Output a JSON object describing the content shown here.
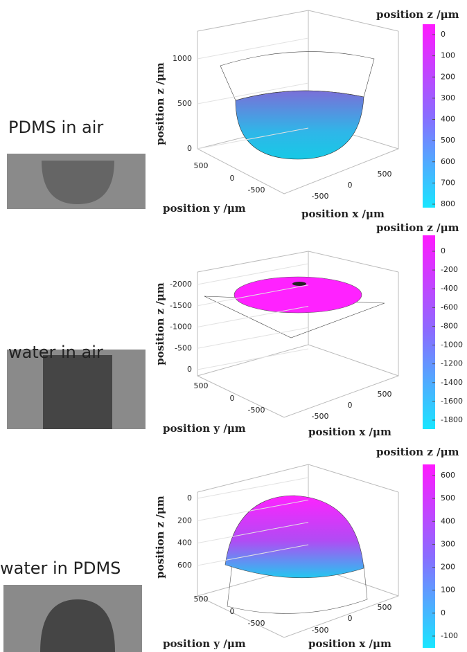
{
  "panels": [
    {
      "label": "PDMS in air",
      "z_axis": {
        "label": "position z /μm",
        "ticks": [
          0,
          500,
          1000
        ]
      },
      "y_axis": {
        "label": "position y /μm",
        "ticks": [
          500,
          0,
          -500
        ]
      },
      "x_axis": {
        "label": "position x /μm",
        "ticks": [
          -500,
          0,
          500
        ]
      },
      "colorbar": {
        "label": "position z /μm",
        "ticks": [
          800,
          700,
          600,
          500,
          400,
          300,
          200,
          100,
          0
        ]
      }
    },
    {
      "label": "water in air",
      "z_axis": {
        "label": "position z /μm",
        "ticks": [
          0,
          -500,
          -1000,
          -1500,
          -2000
        ]
      },
      "y_axis": {
        "label": "position y /μm",
        "ticks": [
          500,
          0,
          -500
        ]
      },
      "x_axis": {
        "label": "position x /μm",
        "ticks": [
          -500,
          0,
          500
        ]
      },
      "colorbar": {
        "label": "position z /μm",
        "ticks": [
          0,
          -200,
          -400,
          -600,
          -800,
          -1000,
          -1200,
          -1400,
          -1600,
          -1800
        ]
      }
    },
    {
      "label": "water in PDMS",
      "z_axis": {
        "label": "position z /μm",
        "ticks": [
          600,
          400,
          200,
          0
        ]
      },
      "y_axis": {
        "label": "position y /μm",
        "ticks": [
          500,
          0,
          -500
        ]
      },
      "x_axis": {
        "label": "position x /μm",
        "ticks": [
          -500,
          0,
          500
        ]
      },
      "colorbar": {
        "label": "position z /μm",
        "ticks": [
          600,
          500,
          400,
          300,
          200,
          100,
          0,
          -100
        ]
      }
    }
  ]
}
